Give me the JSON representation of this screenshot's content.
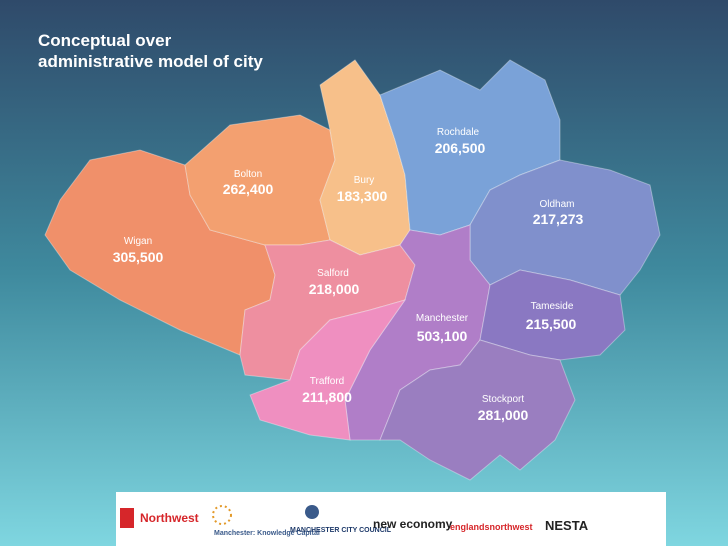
{
  "title": "Conceptual over administrative model of city",
  "regions": [
    {
      "name": "Rochdale",
      "population": "206,500"
    },
    {
      "name": "Bolton",
      "population": "262,400"
    },
    {
      "name": "Bury",
      "population": "183,300"
    },
    {
      "name": "Oldham",
      "population": "217,273"
    },
    {
      "name": "Wigan",
      "population": "305,500"
    },
    {
      "name": "Salford",
      "population": "218,000"
    },
    {
      "name": "Tameside",
      "population": "215,500"
    },
    {
      "name": "Manchester",
      "population": "503,100"
    },
    {
      "name": "Trafford",
      "population": "211,800"
    },
    {
      "name": "Stockport",
      "population": "281,000"
    }
  ],
  "logos": [
    "Northwest",
    "Manchester: Knowledge Capital",
    "MANCHESTER CITY COUNCIL",
    "new economy",
    "englandsnorthwest",
    "NESTA"
  ]
}
